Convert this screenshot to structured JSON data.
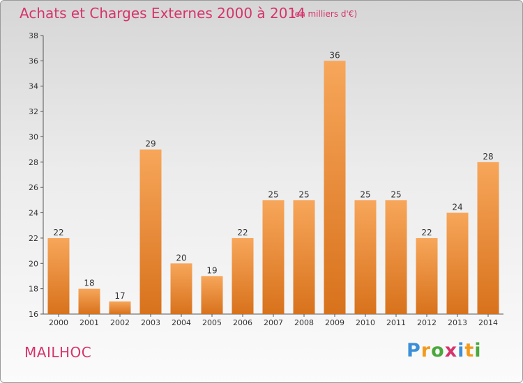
{
  "header": {
    "title": "Achats et Charges Externes 2000 à 2014",
    "subtitle": "(en milliers d'€)"
  },
  "footer": {
    "city": "MAILHOC",
    "logo_letters": [
      "P",
      "r",
      "o",
      "x",
      "i",
      "t",
      "i"
    ],
    "logo_colors": [
      "#3b8fd8",
      "#f39a1c",
      "#4aa83c",
      "#d6336c",
      "#3b8fd8",
      "#f39a1c",
      "#4aa83c"
    ]
  },
  "colors": {
    "bar_top": "#f7a65a",
    "bar_bottom": "#d8721c",
    "accent": "#d6336c"
  },
  "chart_data": {
    "type": "bar",
    "title": "Achats et Charges Externes 2000 à 2014",
    "subtitle": "(en milliers d'€)",
    "xlabel": "",
    "ylabel": "",
    "categories": [
      "2000",
      "2001",
      "2002",
      "2003",
      "2004",
      "2005",
      "2006",
      "2007",
      "2008",
      "2009",
      "2010",
      "2011",
      "2012",
      "2013",
      "2014"
    ],
    "values": [
      22,
      18,
      17,
      29,
      20,
      19,
      22,
      25,
      25,
      36,
      25,
      25,
      22,
      24,
      28
    ],
    "ylim": [
      16,
      38
    ],
    "yticks": [
      16,
      18,
      20,
      22,
      24,
      26,
      28,
      30,
      32,
      34,
      36,
      38
    ],
    "grid": false,
    "legend": "none",
    "data_labels": true
  }
}
